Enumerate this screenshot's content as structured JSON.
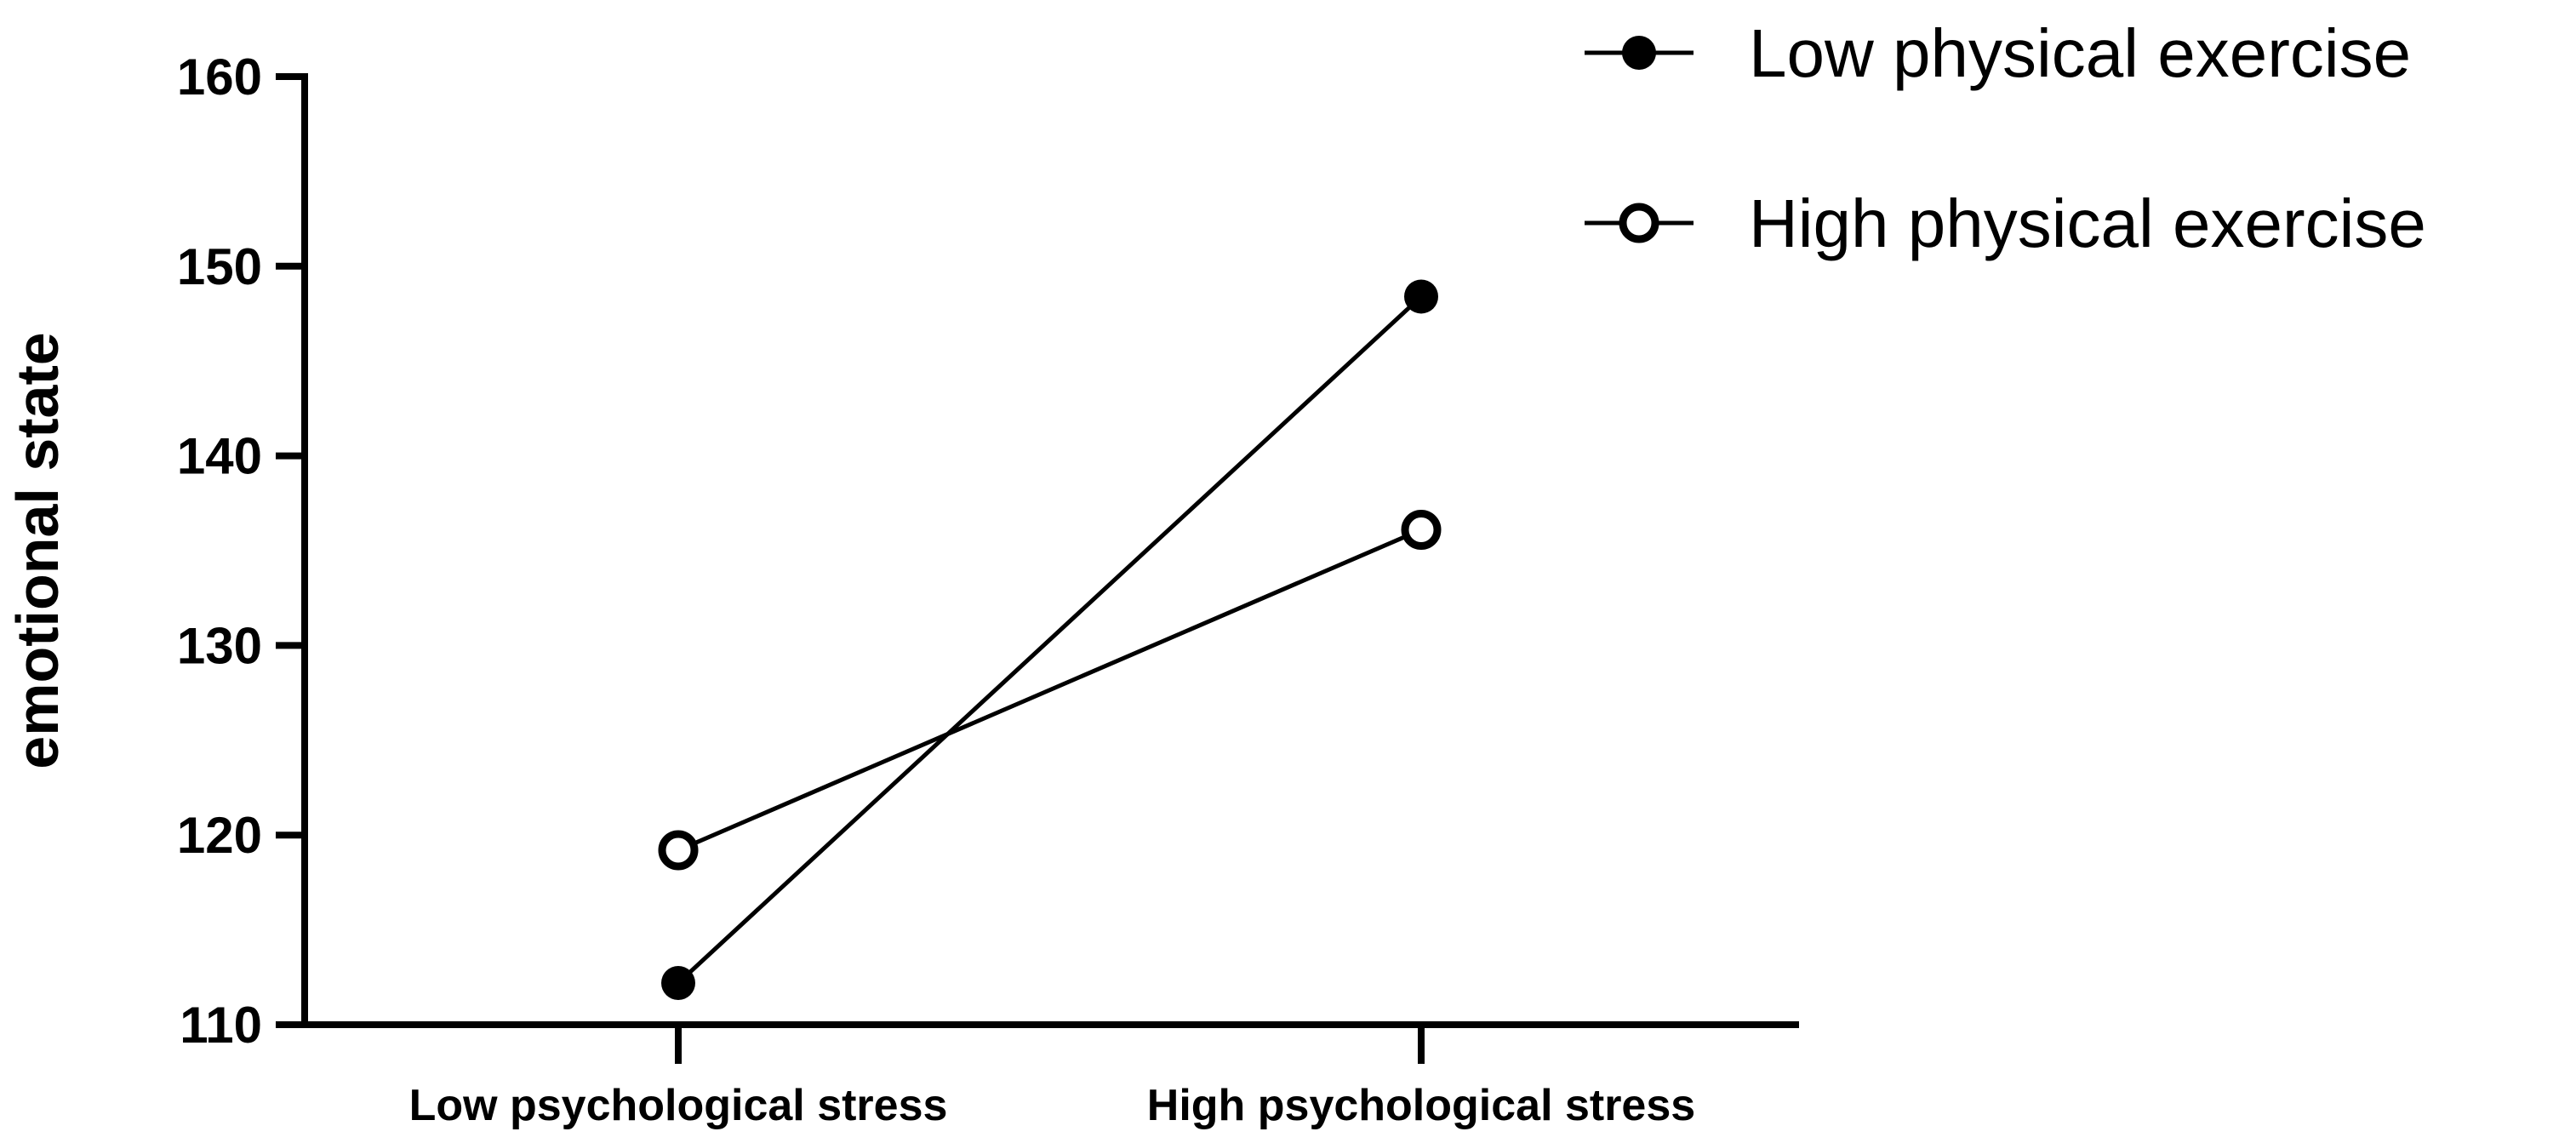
{
  "chart_data": {
    "type": "line",
    "title": "",
    "xlabel": "",
    "ylabel": "emotional state",
    "categories": [
      "Low psychological stress",
      "High psychological stress"
    ],
    "ylim": [
      110,
      160
    ],
    "yticks": [
      "110",
      "120",
      "130",
      "140",
      "150",
      "160"
    ],
    "grid": false,
    "legend_position": "top-right",
    "series": [
      {
        "name": "Low physical exercise",
        "marker": "filled-circle",
        "values": [
          112.2,
          148.4
        ]
      },
      {
        "name": "High physical exercise",
        "marker": "open-circle",
        "values": [
          119.2,
          136.1
        ]
      }
    ],
    "colors": {
      "line": "#000000",
      "marker_fill_open": "#ffffff"
    }
  }
}
